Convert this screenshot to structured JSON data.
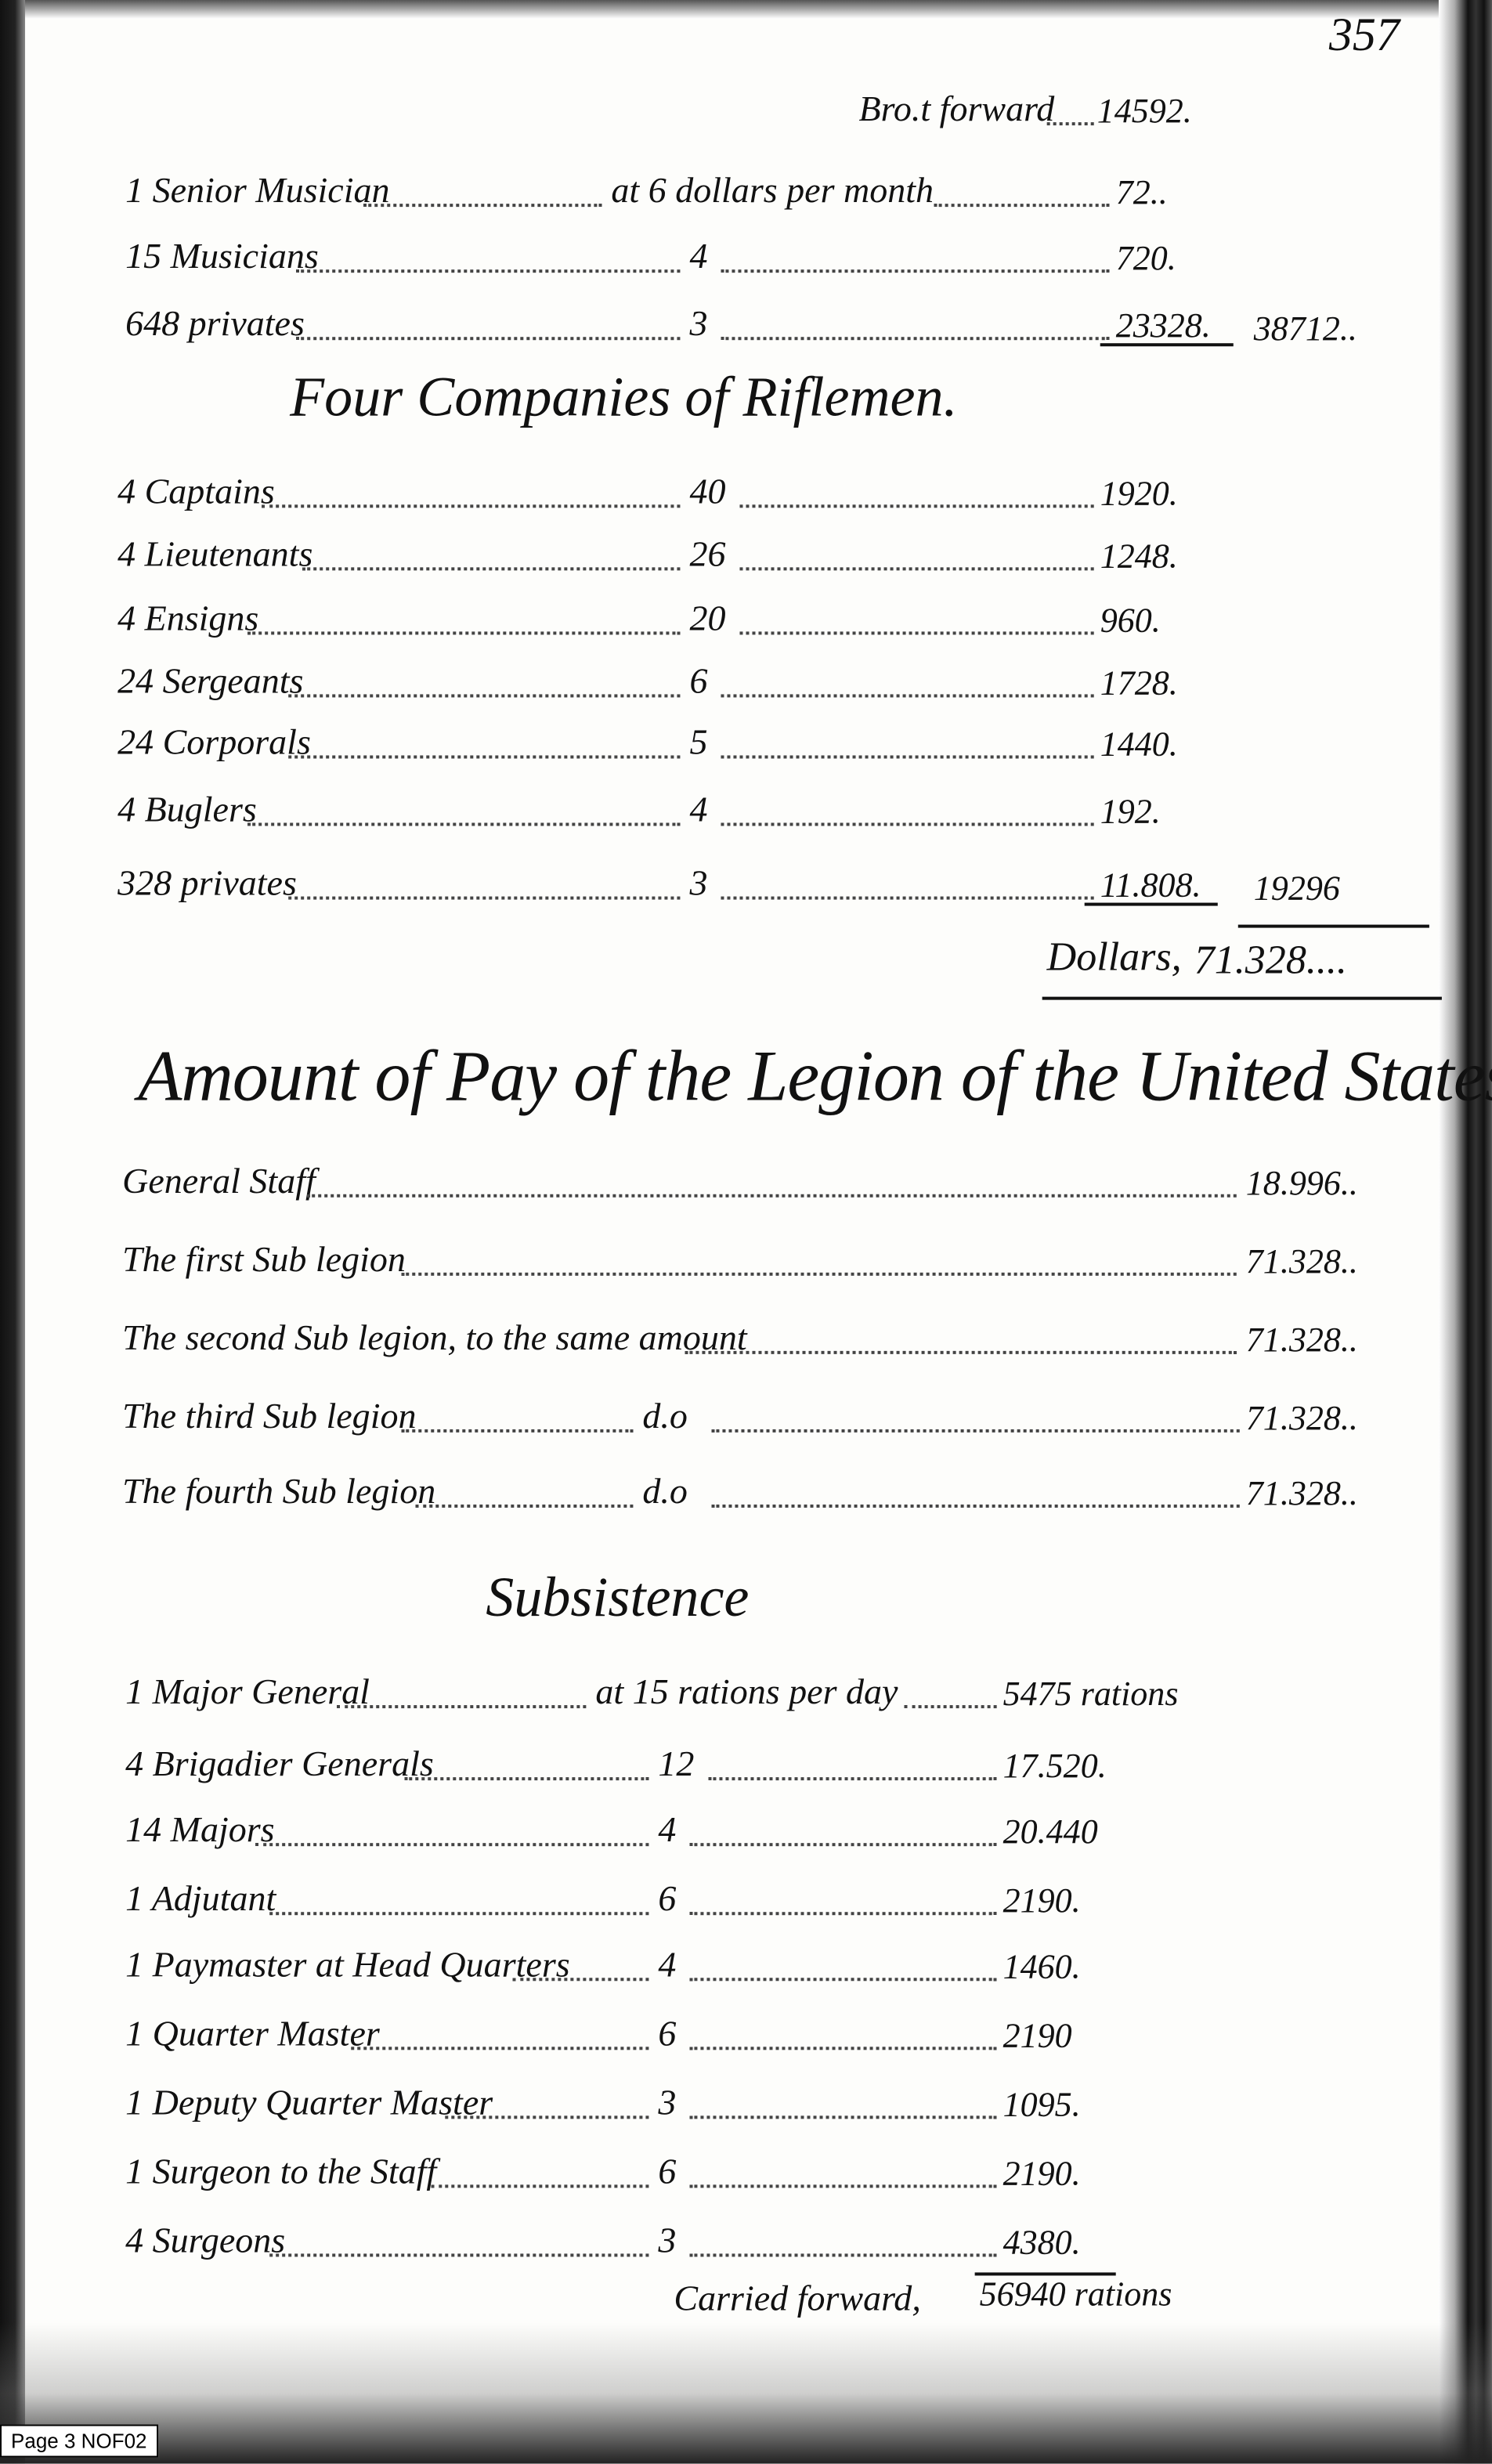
{
  "page_number": "357",
  "brought_forward": {
    "label": "Bro.t forward",
    "value": "14592."
  },
  "top_rows": [
    {
      "name": "1 Senior Musician",
      "rate": "at 6 dollars per month",
      "amount": "72.."
    },
    {
      "name": "15 Musicians",
      "rate": "4",
      "amount": "720."
    },
    {
      "name": "648 privates",
      "rate": "3",
      "amount": "23328.",
      "total": "38712.."
    }
  ],
  "riflemen": {
    "heading": "Four Companies of Riflemen.",
    "rows": [
      {
        "name": "4 Captains",
        "rate": "40",
        "amount": "1920."
      },
      {
        "name": "4 Lieutenants",
        "rate": "26",
        "amount": "1248."
      },
      {
        "name": "4 Ensigns",
        "rate": "20",
        "amount": "960."
      },
      {
        "name": "24 Sergeants",
        "rate": "6",
        "amount": "1728."
      },
      {
        "name": "24 Corporals",
        "rate": "5",
        "amount": "1440."
      },
      {
        "name": "4 Buglers",
        "rate": "4",
        "amount": "192."
      },
      {
        "name": "328 privates",
        "rate": "3",
        "amount": "11.808.",
        "total": "19296"
      }
    ],
    "grand_total_label": "Dollars,",
    "grand_total": "71.328...."
  },
  "legion": {
    "heading": "Amount of Pay of the Legion of the United States.",
    "rows": [
      {
        "name": "General Staff",
        "note": "",
        "amount": "18.996.."
      },
      {
        "name": "The first Sub legion",
        "note": "",
        "amount": "71.328.."
      },
      {
        "name": "The second Sub legion, to the same amount",
        "note": "",
        "amount": "71.328.."
      },
      {
        "name": "The third Sub legion",
        "note": "d.o",
        "amount": "71.328.."
      },
      {
        "name": "The fourth Sub legion",
        "note": "d.o",
        "amount": "71.328.."
      }
    ]
  },
  "subsistence": {
    "heading": "Subsistence",
    "rows": [
      {
        "name": "1 Major General",
        "rate": "at 15 rations per day",
        "amount": "5475 rations"
      },
      {
        "name": "4 Brigadier Generals",
        "rate": "12",
        "amount": "17.520."
      },
      {
        "name": "14 Majors",
        "rate": "4",
        "amount": "20.440"
      },
      {
        "name": "1 Adjutant",
        "rate": "6",
        "amount": "2190."
      },
      {
        "name": "1 Paymaster at Head Quarters",
        "rate": "4",
        "amount": "1460."
      },
      {
        "name": "1 Quarter Master",
        "rate": "6",
        "amount": "2190"
      },
      {
        "name": "1 Deputy Quarter Master",
        "rate": "3",
        "amount": "1095."
      },
      {
        "name": "1 Surgeon to the Staff",
        "rate": "6",
        "amount": "2190."
      },
      {
        "name": "4 Surgeons",
        "rate": "3",
        "amount": "4380."
      }
    ],
    "carried_label": "Carried forward,",
    "carried_value": "56940 rations"
  },
  "footer_label": "Page 3  NOF02"
}
